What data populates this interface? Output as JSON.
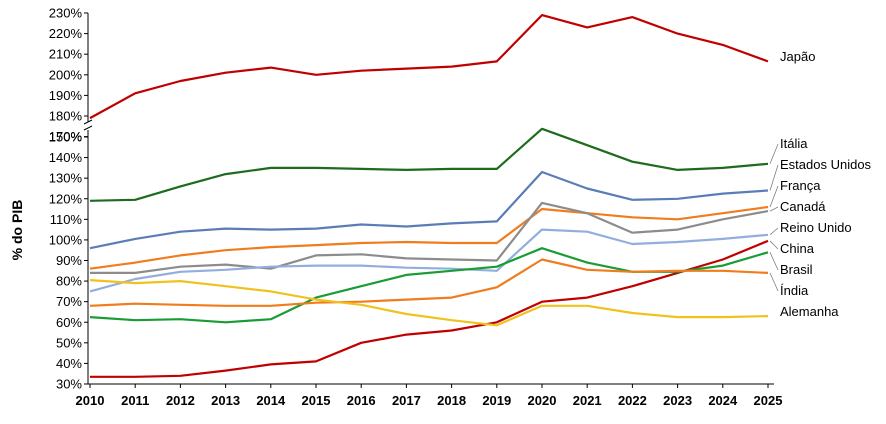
{
  "chart_data": {
    "type": "line",
    "title": "",
    "xlabel": "",
    "ylabel": "% do PIB",
    "x": [
      "2010",
      "2011",
      "2012",
      "2013",
      "2014",
      "2015",
      "2016",
      "2017",
      "2018",
      "2019",
      "2020",
      "2021",
      "2022",
      "2023",
      "2024",
      "2025"
    ],
    "y_axis": {
      "lower_segment": {
        "range": [
          30,
          150
        ],
        "ticks": [
          "30%",
          "40%",
          "50%",
          "60%",
          "70%",
          "80%",
          "90%",
          "100%",
          "110%",
          "120%",
          "130%",
          "140%",
          "150%"
        ]
      },
      "upper_segment": {
        "range": [
          170,
          230
        ],
        "ticks": [
          "170%",
          "180%",
          "190%",
          "200%",
          "210%",
          "220%",
          "230%"
        ]
      },
      "broken_axis": true
    },
    "grid": false,
    "series": [
      {
        "name": "Japão",
        "color": "#c00000",
        "values": [
          179,
          191,
          197,
          201,
          203.5,
          200,
          202,
          203,
          204,
          206.5,
          229,
          223,
          228,
          220,
          214.5,
          206.5
        ]
      },
      {
        "name": "Itália",
        "color": "#1e6b1e",
        "values": [
          119,
          119.5,
          126,
          132,
          135,
          135,
          134.5,
          134,
          134.5,
          134.5,
          154,
          146,
          138,
          134,
          135,
          137
        ]
      },
      {
        "name": "Estados Unidos",
        "color": "#5b7db5",
        "values": [
          96,
          100.5,
          104,
          105.5,
          105,
          105.5,
          107.5,
          106.5,
          108,
          109,
          133,
          125,
          119.5,
          120,
          122.5,
          124
        ]
      },
      {
        "name": "França",
        "color": "#f07c1e",
        "values": [
          86,
          89,
          92.5,
          95,
          96.5,
          97.5,
          98.5,
          99,
          98.5,
          98.5,
          115,
          113,
          111,
          110,
          113,
          116
        ]
      },
      {
        "name": "Canadá",
        "color": "#8c8c8c",
        "values": [
          84,
          84,
          87,
          88,
          86,
          92.5,
          93,
          91,
          90.5,
          90,
          118,
          113,
          103.5,
          105,
          110,
          114
        ]
      },
      {
        "name": "Reino Unido",
        "color": "#92aedc",
        "values": [
          75,
          81,
          84.5,
          85.5,
          87,
          87.5,
          87.5,
          86.5,
          86,
          85,
          105,
          104,
          98,
          99,
          100.5,
          102.5
        ]
      },
      {
        "name": "China",
        "color": "#c00000",
        "values": [
          33.5,
          33.5,
          34,
          36.5,
          39.5,
          41,
          50,
          54,
          56,
          60,
          70,
          72,
          77.5,
          84,
          90.5,
          99.5
        ]
      },
      {
        "name": "Brasil",
        "color": "#1a9c35",
        "values": [
          62.5,
          61,
          61.5,
          60,
          61.5,
          72,
          77.5,
          83,
          85,
          87,
          96,
          89,
          84.5,
          84.5,
          87.5,
          94
        ]
      },
      {
        "name": "Índia",
        "color": "#f07c1e",
        "values": [
          68,
          69,
          68.5,
          68,
          68,
          69.5,
          70,
          71,
          72,
          77,
          90.5,
          85.5,
          84.5,
          85,
          85,
          84
        ]
      },
      {
        "name": "Alemanha",
        "color": "#f0c21e",
        "values": [
          80.5,
          79,
          80,
          77.5,
          75,
          71,
          68.5,
          64,
          61,
          58.5,
          68,
          68,
          64.5,
          62.5,
          62.5,
          63
        ]
      }
    ]
  }
}
